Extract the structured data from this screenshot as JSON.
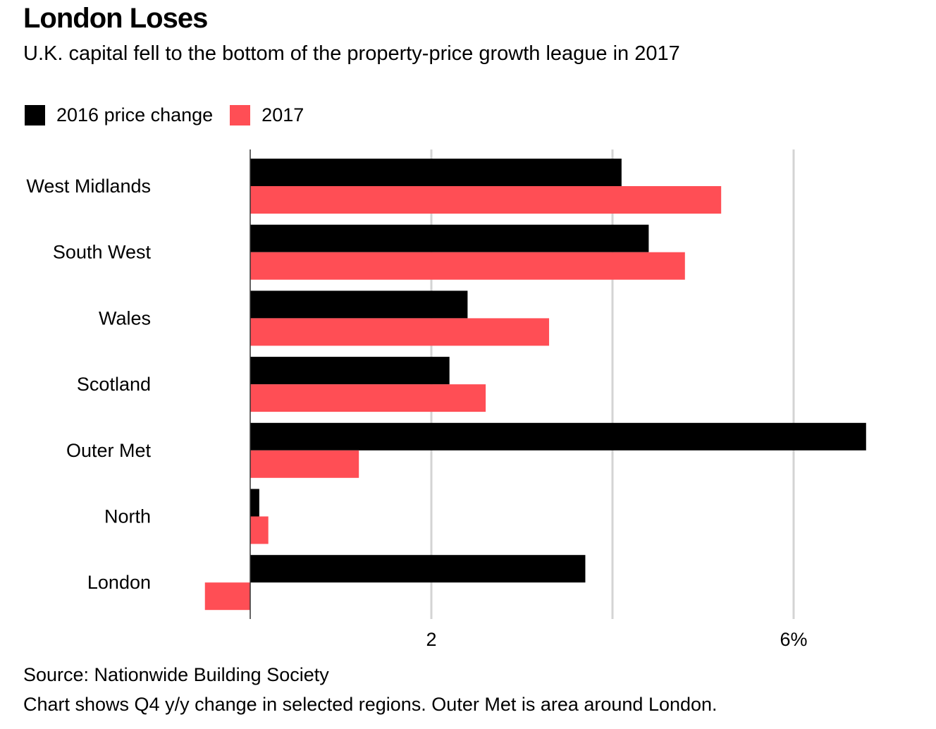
{
  "title": "London Loses",
  "subtitle": "U.K. capital fell to the bottom of the property-price growth league in 2017",
  "legend": [
    {
      "label": "2016 price change",
      "color": "#000000"
    },
    {
      "label": "2017",
      "color": "#ff4e55"
    }
  ],
  "footer": {
    "source": "Source: Nationwide Building Society",
    "note": "Chart shows Q4 y/y change in selected regions. Outer Met is area around London."
  },
  "chart_data": {
    "type": "bar",
    "orientation": "horizontal",
    "title": "London Loses",
    "subtitle": "U.K. capital fell to the bottom of the property-price growth league in 2017",
    "categories": [
      "West Midlands",
      "South West",
      "Wales",
      "Scotland",
      "Outer Met",
      "North",
      "London"
    ],
    "series": [
      {
        "name": "2016 price change",
        "color": "#000000",
        "values": [
          4.1,
          4.4,
          2.4,
          2.2,
          6.8,
          0.1,
          3.7
        ]
      },
      {
        "name": "2017",
        "color": "#ff4e55",
        "values": [
          5.2,
          4.8,
          3.3,
          2.6,
          1.2,
          0.2,
          -0.5
        ]
      }
    ],
    "xlabel": "",
    "ylabel": "",
    "xlim": [
      -0.52,
      7.0
    ],
    "gridlines": [
      2,
      4,
      6
    ],
    "tick_labels": [
      {
        "value": 2,
        "label": "2"
      },
      {
        "value": 6,
        "label": "6%"
      }
    ],
    "grid": true,
    "legend_position": "top-left"
  }
}
